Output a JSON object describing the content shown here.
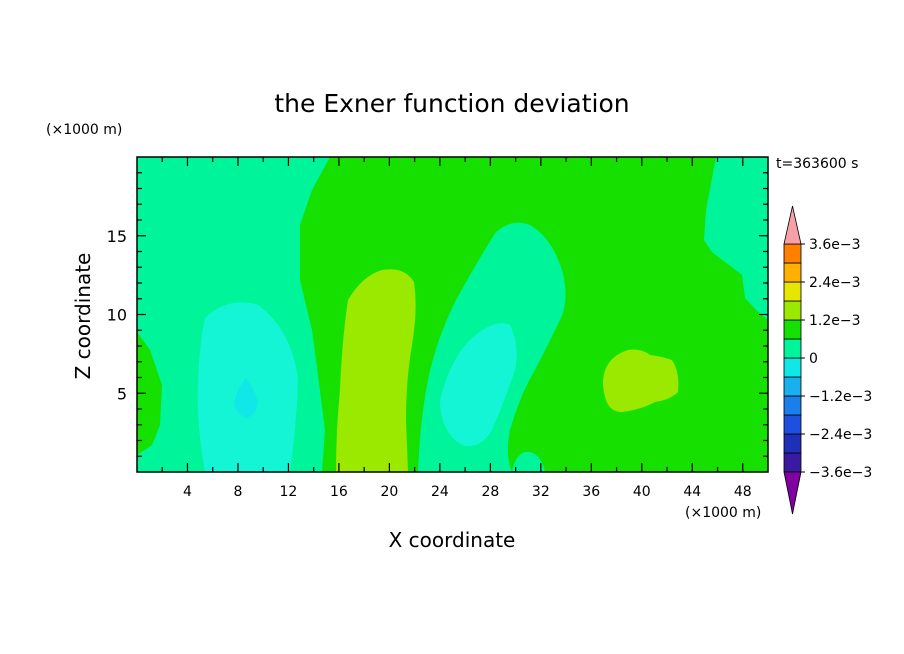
{
  "chart_data": {
    "type": "contour",
    "title": "the Exner function deviation",
    "xlabel": "X coordinate",
    "ylabel": "Z coordinate",
    "x_unit": "(×1000 m)",
    "y_unit": "(×1000 m)",
    "time_label": "t=363600 s",
    "xlim": [
      0,
      50
    ],
    "ylim": [
      0,
      20
    ],
    "x_ticks": [
      4,
      8,
      12,
      16,
      20,
      24,
      28,
      32,
      36,
      40,
      44,
      48
    ],
    "y_ticks": [
      5,
      10,
      15
    ],
    "colorbar": {
      "levels": [
        -0.0036,
        -0.003,
        -0.0024,
        -0.0018,
        -0.0012,
        -0.0006,
        0,
        0.0006,
        0.0012,
        0.0018,
        0.0024,
        0.003,
        0.0036
      ],
      "tick_labels": [
        {
          "value": 0.0036,
          "label": "3.6e−3"
        },
        {
          "value": 0.0024,
          "label": "2.4e−3"
        },
        {
          "value": 0.0012,
          "label": "1.2e−3"
        },
        {
          "value": 0,
          "label": "0"
        },
        {
          "value": -0.0012,
          "label": "−1.2e−3"
        },
        {
          "value": -0.0024,
          "label": "−2.4e−3"
        },
        {
          "value": -0.0036,
          "label": "−3.6e−3"
        }
      ],
      "colors": [
        "#8000a0",
        "#3a1aa0",
        "#1f2fb8",
        "#1d4fe0",
        "#1a7fe8",
        "#1ab0f0",
        "#10e8e8",
        "#00f59a",
        "#16e000",
        "#9be800",
        "#e6e600",
        "#ffb000",
        "#ff7f00",
        "#ff4a00",
        "#ff1010",
        "#f7a0a8"
      ]
    },
    "colors": {
      "green": "#16e000",
      "cyan_green": "#00f59a",
      "cyan": "#10e8e8",
      "light_cyan": "#14f5d6",
      "yellow_green": "#9be800"
    }
  }
}
